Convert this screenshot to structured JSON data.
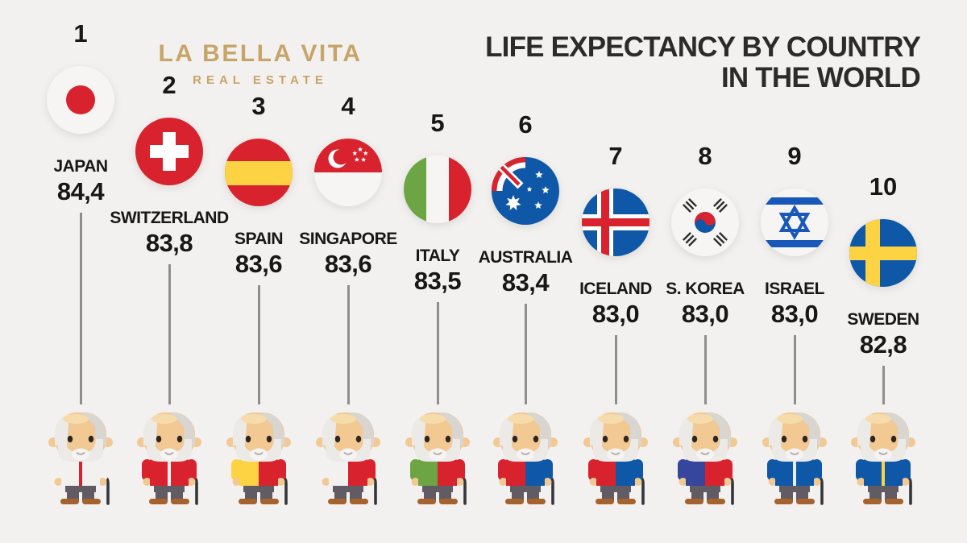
{
  "logo": {
    "title": "LA BELLA VITA",
    "subtitle": "REAL ESTATE",
    "color": "#c7a467"
  },
  "title": {
    "line1": "LIFE EXPECTANCY BY COUNTRY",
    "line2": "IN THE WORLD",
    "color": "#2d2b2a"
  },
  "palette": {
    "red": "#d8232f",
    "blue": "#0f58a8",
    "israel_blue": "#1758b8",
    "yellow": "#fdd243",
    "green": "#6da544",
    "flag_white": "#f7f5f3",
    "trigram_black": "#2d2d2d",
    "skin": "#f2c893",
    "skin_light": "#f6dcab",
    "hair_light": "#eceae7",
    "hair_shade": "#d9d5d1",
    "beard_inner": "#f6f4f2",
    "smile": "#b5b1ad",
    "eye": "#2e2620",
    "pants": "#615c64",
    "shoes": "#a5622d",
    "cane": "#34363b",
    "line": "#908e8c",
    "text": "#181716",
    "background": "#f2f1ef"
  },
  "chart_data": {
    "type": "pictorial-ranking",
    "title": "LIFE EXPECTANCY BY COUNTRY IN THE WORLD",
    "unit": "age in years",
    "value_format": "comma decimal separator",
    "categories": [
      "JAPAN",
      "SWITZERLAND",
      "SPAIN",
      "SINGAPORE",
      "ITALY",
      "AUSTRALIA",
      "ICELAND",
      "S. KOREA",
      "ISRAEL",
      "SWEDEN"
    ],
    "values": [
      84.4,
      83.8,
      83.6,
      83.6,
      83.5,
      83.4,
      83.0,
      83.0,
      83.0,
      82.8
    ],
    "ranks": [
      1,
      2,
      3,
      4,
      5,
      6,
      7,
      8,
      9,
      10
    ],
    "items": [
      {
        "rank": "1",
        "name": "JAPAN",
        "value": 84.4,
        "label": "84,4",
        "flag": "japan",
        "jacket": {
          "left": "#f3f1ef",
          "right": "#f3f1ef",
          "zip": "#d8232f"
        }
      },
      {
        "rank": "2",
        "name": "SWITZERLAND",
        "value": 83.8,
        "label": "83,8",
        "flag": "switzerland",
        "jacket": {
          "left": "#d8232f",
          "right": "#d8232f",
          "zip": "#f3f1ef"
        }
      },
      {
        "rank": "3",
        "name": "SPAIN",
        "value": 83.6,
        "label": "83,6",
        "flag": "spain",
        "jacket": {
          "left": "#fdd243",
          "right": "#d8232f",
          "zip": null
        }
      },
      {
        "rank": "4",
        "name": "SINGAPORE",
        "value": 83.6,
        "label": "83,6",
        "flag": "singapore",
        "jacket": {
          "left": "#f3f1ef",
          "right": "#d8232f",
          "zip": null
        }
      },
      {
        "rank": "5",
        "name": "ITALY",
        "value": 83.5,
        "label": "83,5",
        "flag": "italy",
        "jacket": {
          "left": "#6da544",
          "right": "#d8232f",
          "zip": null
        }
      },
      {
        "rank": "6",
        "name": "AUSTRALIA",
        "value": 83.4,
        "label": "83,4",
        "flag": "australia",
        "jacket": {
          "left": "#d8232f",
          "right": "#0f58a8",
          "zip": null
        }
      },
      {
        "rank": "7",
        "name": "ICELAND",
        "value": 83.0,
        "label": "83,0",
        "flag": "iceland",
        "jacket": {
          "left": "#d8232f",
          "right": "#0f58a8",
          "zip": null
        }
      },
      {
        "rank": "8",
        "name": "S. KOREA",
        "value": 83.0,
        "label": "83,0",
        "flag": "skorea",
        "jacket": {
          "left": "#35469c",
          "right": "#d8232f",
          "zip": null
        }
      },
      {
        "rank": "9",
        "name": "ISRAEL",
        "value": 83.0,
        "label": "83,0",
        "flag": "israel",
        "jacket": {
          "left": "#0f58a8",
          "right": "#0f58a8",
          "zip": "#e8eef6"
        }
      },
      {
        "rank": "10",
        "name": "SWEDEN",
        "value": 82.8,
        "label": "82,8",
        "flag": "sweden",
        "jacket": {
          "left": "#0f58a8",
          "right": "#0f58a8",
          "zip": "#fdd243"
        }
      }
    ]
  }
}
